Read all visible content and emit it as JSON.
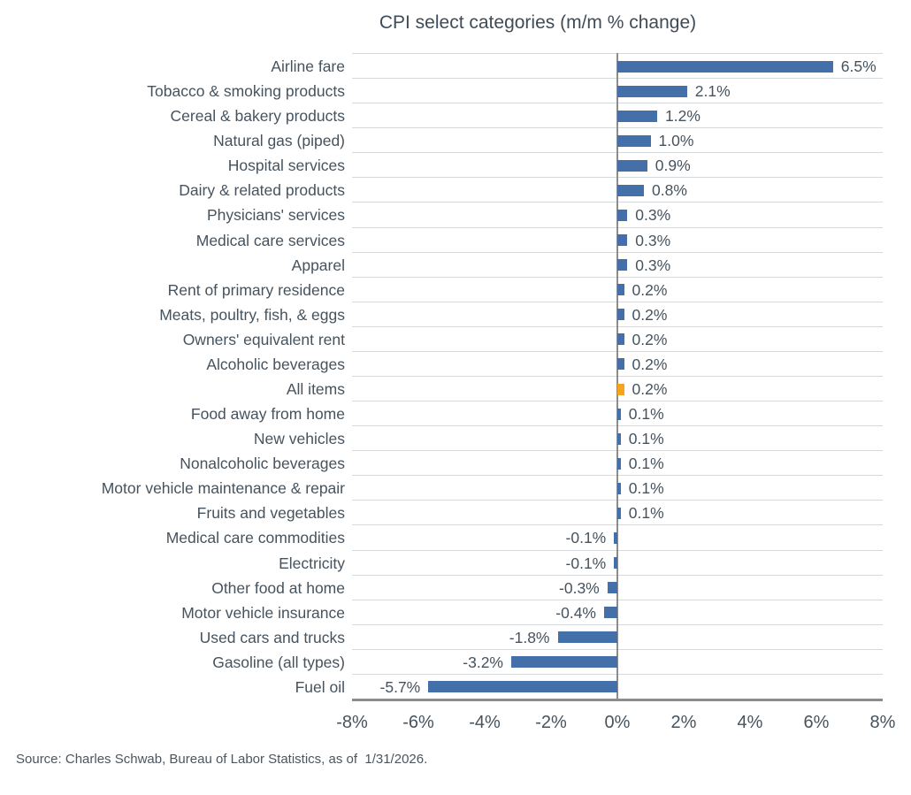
{
  "title": "CPI select categories (m/m % change)",
  "source": "Source: Charles Schwab, Bureau of Labor Statistics, as of  1/31/2026.",
  "colors": {
    "bar": "#4470a9",
    "highlight": "#f5a51d",
    "text": "#46535e",
    "title_text": "#3f4c57",
    "grid": "#d6d9dc",
    "axis": "#8c8c8c",
    "background": "#ffffff"
  },
  "chart_data": {
    "type": "bar",
    "orientation": "horizontal",
    "title": "CPI select categories (m/m % change)",
    "categories": [
      "Airline fare",
      "Tobacco & smoking products",
      "Cereal & bakery products",
      "Natural gas (piped)",
      "Hospital services",
      "Dairy & related products",
      "Physicians' services",
      "Medical care services",
      "Apparel",
      "Rent of primary residence",
      "Meats, poultry, fish, & eggs",
      "Owners' equivalent rent",
      "Alcoholic beverages",
      "All items",
      "Food away from home",
      "New vehicles",
      "Nonalcoholic beverages",
      "Motor vehicle maintenance & repair",
      "Fruits and vegetables",
      "Medical care commodities",
      "Electricity",
      "Other food at home",
      "Motor vehicle insurance",
      "Used cars and trucks",
      "Gasoline (all types)",
      "Fuel oil"
    ],
    "values": [
      6.5,
      2.1,
      1.2,
      1.0,
      0.9,
      0.8,
      0.3,
      0.3,
      0.3,
      0.2,
      0.2,
      0.2,
      0.2,
      0.2,
      0.1,
      0.1,
      0.1,
      0.1,
      0.1,
      -0.1,
      -0.1,
      -0.3,
      -0.4,
      -1.8,
      -3.2,
      -5.7
    ],
    "value_labels": [
      "6.5%",
      "2.1%",
      "1.2%",
      "1.0%",
      "0.9%",
      "0.8%",
      "0.3%",
      "0.3%",
      "0.3%",
      "0.2%",
      "0.2%",
      "0.2%",
      "0.2%",
      "0.2%",
      "0.1%",
      "0.1%",
      "0.1%",
      "0.1%",
      "0.1%",
      "-0.1%",
      "-0.1%",
      "-0.3%",
      "-0.4%",
      "-1.8%",
      "-3.2%",
      "-5.7%"
    ],
    "highlight_category": "All items",
    "highlight_index": 13,
    "xlim": [
      -8,
      8
    ],
    "x_tick_labels": [
      "-8%",
      "-6%",
      "-4%",
      "-2%",
      "0%",
      "2%",
      "4%",
      "6%",
      "8%"
    ],
    "x_tick_values": [
      -8,
      -6,
      -4,
      -2,
      0,
      2,
      4,
      6,
      8
    ],
    "grid": "horizontal row separators only, vertical zero line",
    "legend": "none"
  }
}
